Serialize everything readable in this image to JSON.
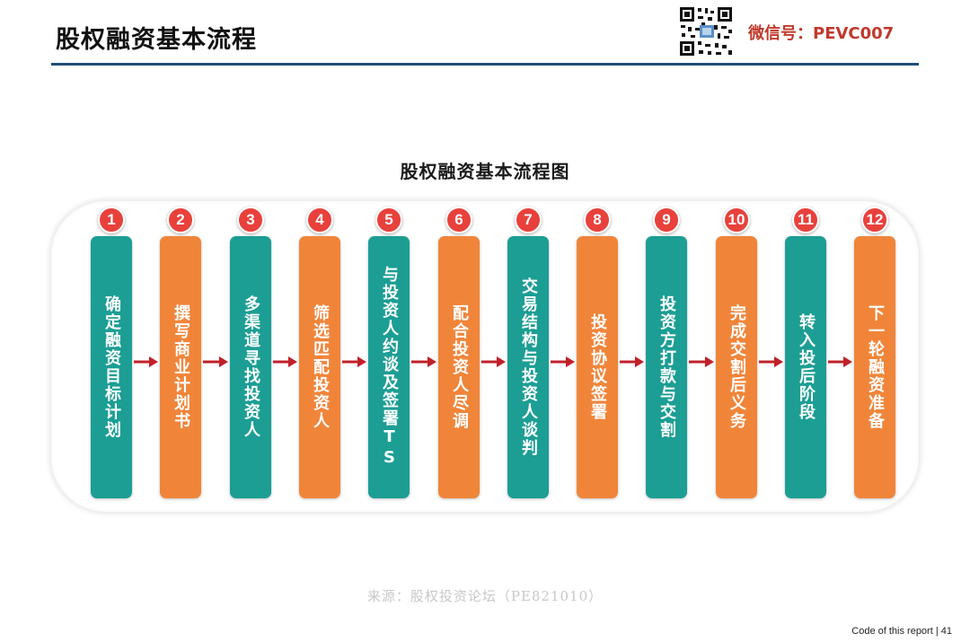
{
  "header": {
    "title": "股权融资基本流程",
    "wechat": "微信号：PEVC007",
    "qr_icon": "qr-code-icon"
  },
  "diagram": {
    "title": "股权融资基本流程图",
    "arrow_color": "#c0202a",
    "steps": [
      {
        "number": "1",
        "label": "确定融资目标计划",
        "color": "#1c9e94"
      },
      {
        "number": "2",
        "label": "撰写商业计划书",
        "color": "#f0853a"
      },
      {
        "number": "3",
        "label": "多渠道寻找投资人",
        "color": "#1c9e94"
      },
      {
        "number": "4",
        "label": "筛选匹配投资人",
        "color": "#f0853a"
      },
      {
        "number": "5",
        "label": "与投资人约谈及签署TS",
        "color": "#1c9e94"
      },
      {
        "number": "6",
        "label": "配合投资人尽调",
        "color": "#f0853a"
      },
      {
        "number": "7",
        "label": "交易结构与投资人谈判",
        "color": "#1c9e94"
      },
      {
        "number": "8",
        "label": "投资协议签署",
        "color": "#f0853a"
      },
      {
        "number": "9",
        "label": "投资方打款与交割",
        "color": "#1c9e94"
      },
      {
        "number": "10",
        "label": "完成交割后义务",
        "color": "#f0853a"
      },
      {
        "number": "11",
        "label": "转入投后阶段",
        "color": "#1c9e94"
      },
      {
        "number": "12",
        "label": "下一轮融资准备",
        "color": "#f0853a"
      }
    ]
  },
  "source": "来源：股权投资论坛（PE821010）",
  "footer": {
    "text": "Code of this report",
    "page": "| 41"
  }
}
